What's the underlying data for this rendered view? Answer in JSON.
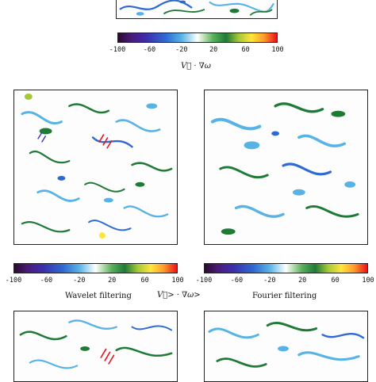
{
  "figure": {
    "colorbar_ticks": [
      "-100",
      "-60",
      "-20",
      "20",
      "60",
      "100"
    ],
    "top_quantity_label": "V⃗ · ∇ω",
    "mid_quantity_label": "V⃗> · ∇ω>",
    "left_caption": "Wavelet filtering",
    "right_caption": "Fourier filtering",
    "colormap": {
      "negative_strong": "#3b2fae",
      "negative_mid": "#2f6ad2",
      "negative_light": "#57b3e6",
      "zero": "#ffffff",
      "positive_light": "#57b05a",
      "positive_mid": "#1f7a36",
      "positive_high": "#ffe53b",
      "positive_max": "#e8121a"
    }
  }
}
